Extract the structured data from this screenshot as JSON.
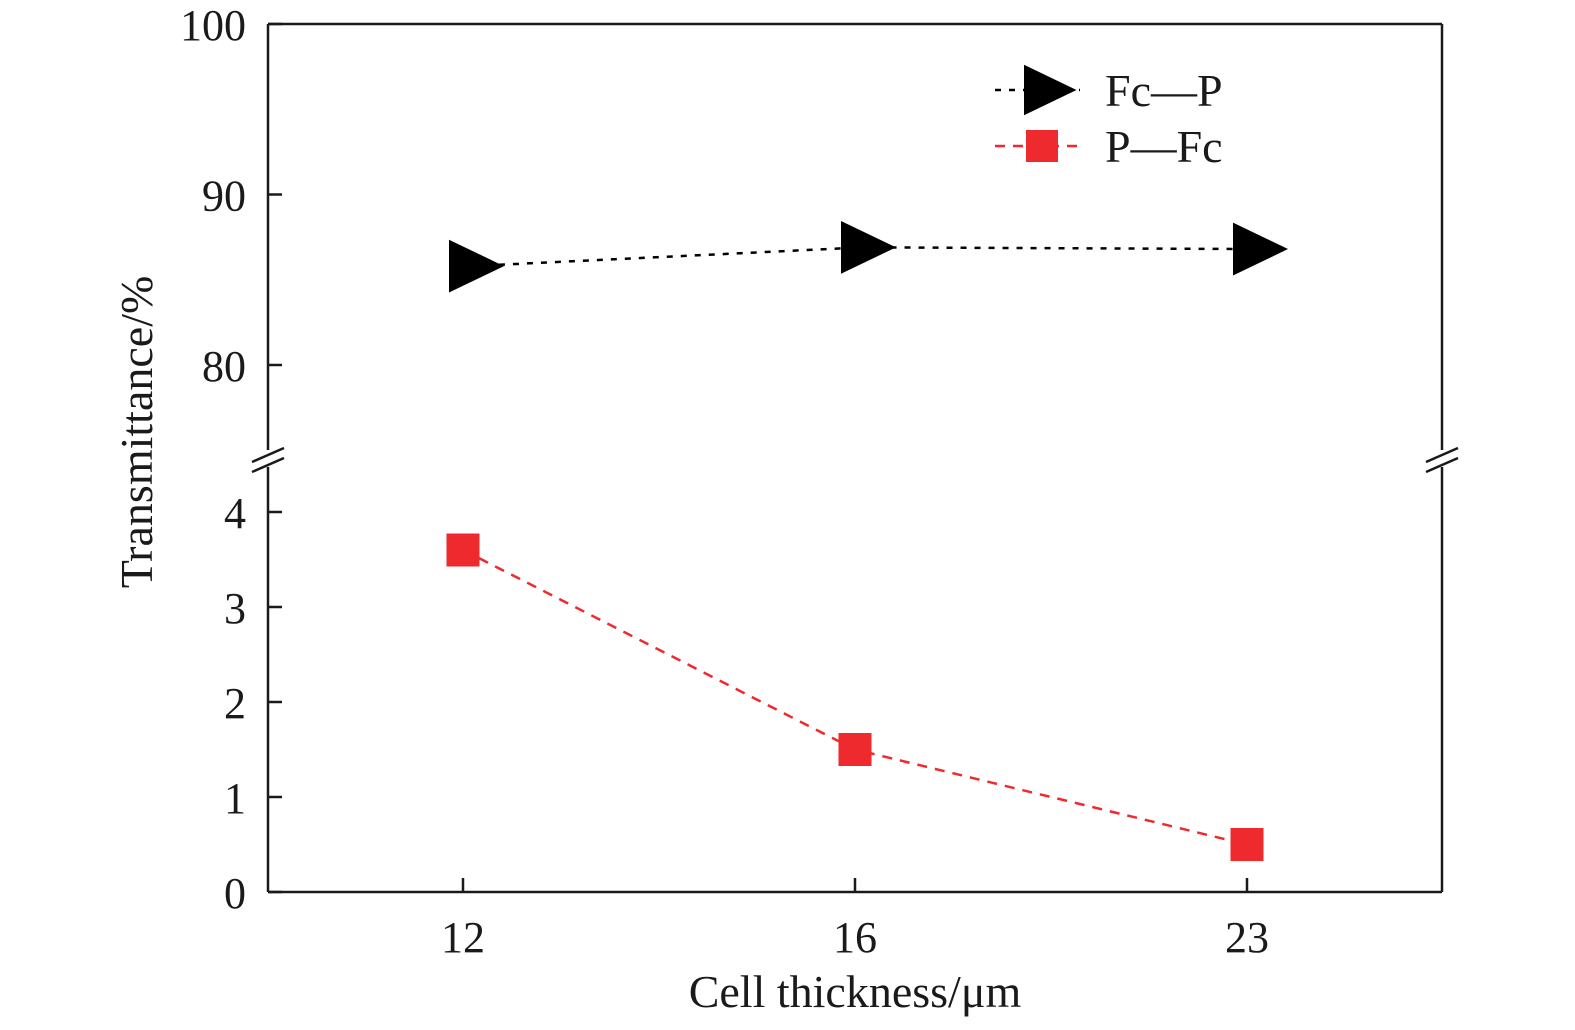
{
  "chart_data": {
    "type": "line",
    "title": "",
    "xlabel": "Cell thickness/μm",
    "ylabel": "Transmittance/%",
    "categories": [
      "12",
      "16",
      "23"
    ],
    "y_axis_break": true,
    "y_upper_range": [
      75,
      100
    ],
    "y_upper_ticks": [
      "100",
      "90",
      "80"
    ],
    "y_lower_range": [
      0,
      4.6
    ],
    "y_lower_ticks": [
      "4",
      "3",
      "2",
      "1",
      "0"
    ],
    "grid": false,
    "legend_position": "top-right",
    "series": [
      {
        "name": "Fc—P",
        "values": [
          85.8,
          86.9,
          86.8
        ],
        "color": "#000000",
        "marker": "right-triangle",
        "line_style": "dotted"
      },
      {
        "name": "P—Fc",
        "values": [
          3.6,
          1.5,
          0.5
        ],
        "color": "#ee2a2e",
        "marker": "square",
        "line_style": "dashed"
      }
    ]
  }
}
